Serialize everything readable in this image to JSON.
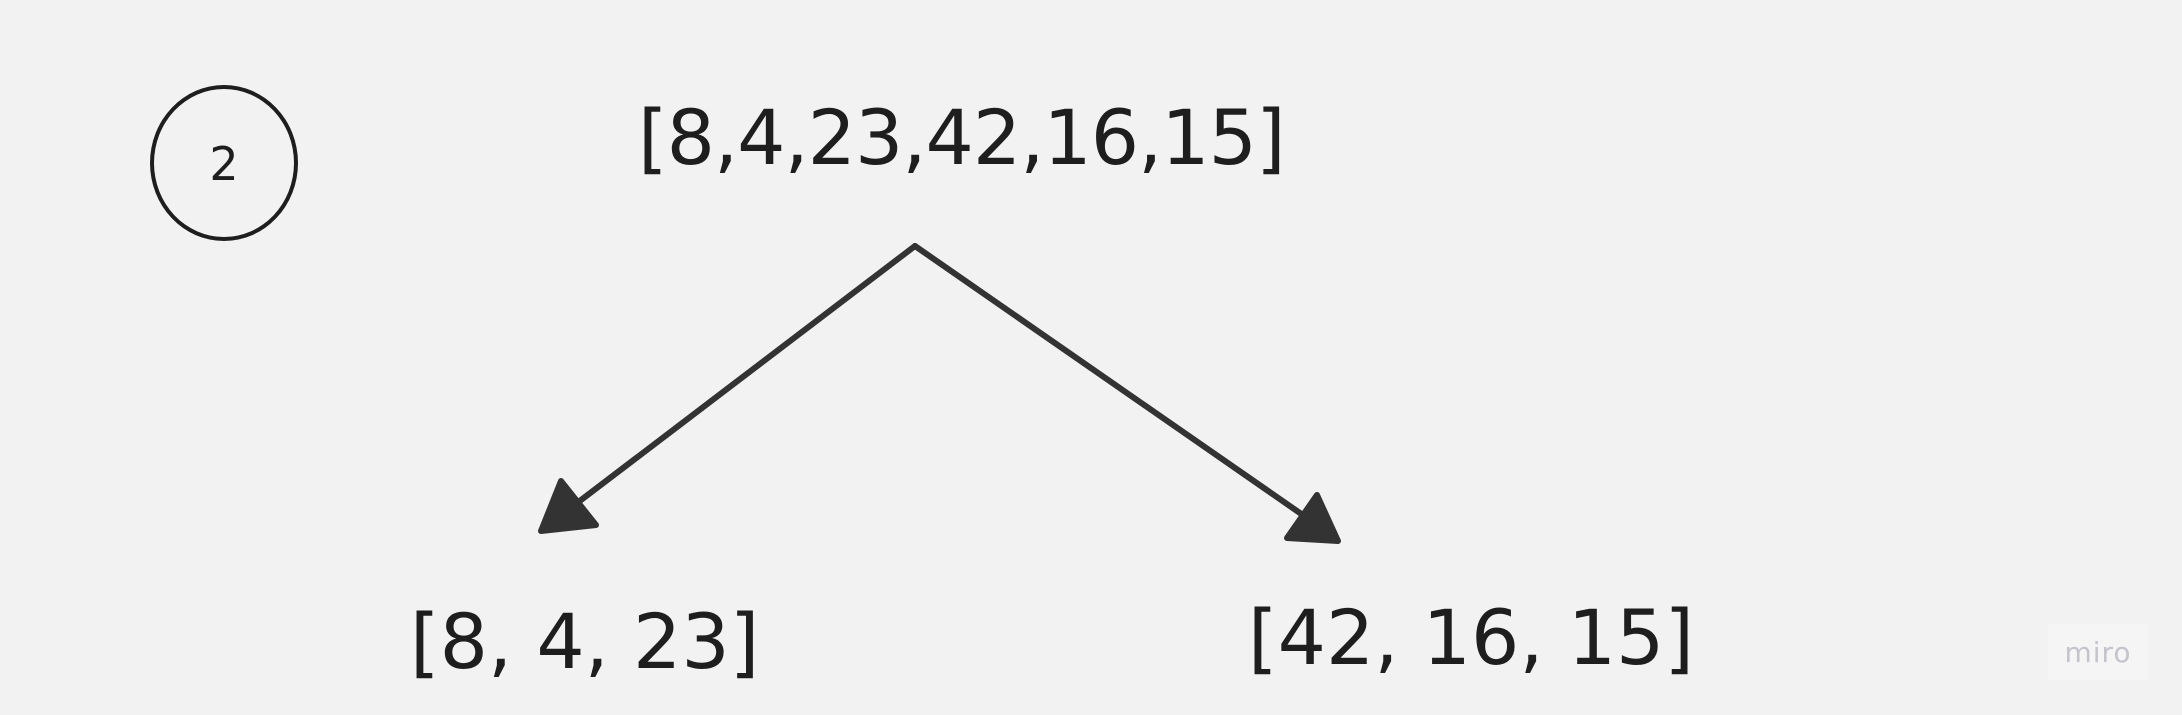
{
  "badge": {
    "label": "2"
  },
  "arrays": {
    "root": "[8,4,23,42,16,15]",
    "left": "[8, 4, 23]",
    "right": "[42, 16, 15]"
  },
  "watermark": {
    "label": "miro"
  },
  "colors": {
    "background": "#f2f2f2",
    "ink": "#1e1e1e",
    "arrow": "#333333",
    "watermark": "#c4c4cc"
  }
}
